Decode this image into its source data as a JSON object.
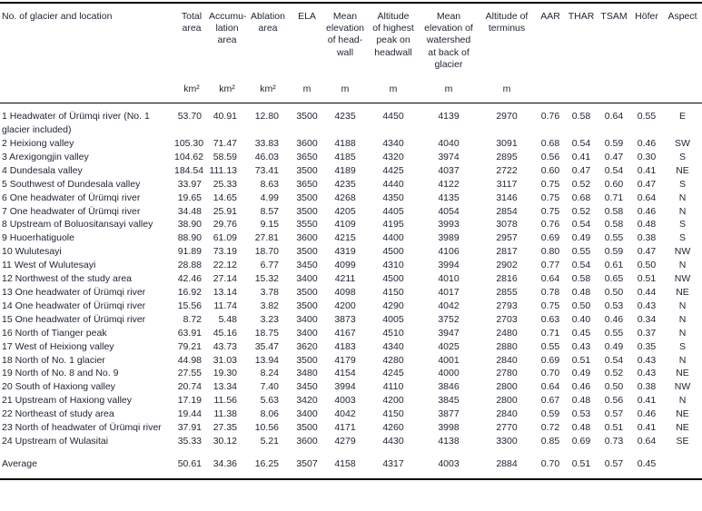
{
  "table": {
    "columns": [
      {
        "key": "glacier-location",
        "label": "No. of glacier and location",
        "unit": ""
      },
      {
        "key": "total-area",
        "label": "Total\narea",
        "unit": "km²"
      },
      {
        "key": "accumulation-area",
        "label": "Accumu-\nlation\narea",
        "unit": "km²"
      },
      {
        "key": "ablation-area",
        "label": "Ablation\narea",
        "unit": "km²"
      },
      {
        "key": "ela",
        "label": "ELA",
        "unit": "m"
      },
      {
        "key": "mean-elevation-headwall",
        "label": "Mean\nelevation\nof head-\nwall",
        "unit": "m"
      },
      {
        "key": "altitude-highest-peak",
        "label": "Altitude\nof highest\npeak on\nheadwall",
        "unit": "m"
      },
      {
        "key": "mean-elevation-watershed",
        "label": "Mean\nelevation of\nwatershed\nat back of\nglacier",
        "unit": "m"
      },
      {
        "key": "altitude-terminus",
        "label": "Altitude of\nterminus",
        "unit": "m"
      },
      {
        "key": "aar",
        "label": "AAR",
        "unit": ""
      },
      {
        "key": "thar",
        "label": "THAR",
        "unit": ""
      },
      {
        "key": "tsam",
        "label": "TSAM",
        "unit": ""
      },
      {
        "key": "hofer",
        "label": "Höfer",
        "unit": ""
      },
      {
        "key": "aspect",
        "label": "Aspect",
        "unit": ""
      }
    ],
    "rows": [
      [
        "1 Headwater of Ürümqi river (No. 1 glacier included)",
        "53.70",
        "40.91",
        "12.80",
        "3500",
        "4235",
        "4450",
        "4139",
        "2970",
        "0.76",
        "0.58",
        "0.64",
        "0.55",
        "E"
      ],
      [
        "2 Heixiong valley",
        "105.30",
        "71.47",
        "33.83",
        "3600",
        "4188",
        "4340",
        "4040",
        "3091",
        "0.68",
        "0.54",
        "0.59",
        "0.46",
        "SW"
      ],
      [
        "3 Arexigongjin valley",
        "104.62",
        "58.59",
        "46.03",
        "3650",
        "4185",
        "4320",
        "3974",
        "2895",
        "0.56",
        "0.41",
        "0.47",
        "0.30",
        "S"
      ],
      [
        "4 Dundesala valley",
        "184.54",
        "111.13",
        "73.41",
        "3500",
        "4189",
        "4425",
        "4037",
        "2722",
        "0.60",
        "0.47",
        "0.54",
        "0.41",
        "NE"
      ],
      [
        "5 Southwest of Dundesala valley",
        "33.97",
        "25.33",
        "8.63",
        "3650",
        "4235",
        "4440",
        "4122",
        "3117",
        "0.75",
        "0.52",
        "0.60",
        "0.47",
        "S"
      ],
      [
        "6 One headwater of Ürümqi river",
        "19.65",
        "14.65",
        "4.99",
        "3500",
        "4268",
        "4350",
        "4135",
        "3146",
        "0.75",
        "0.68",
        "0.71",
        "0.64",
        "N"
      ],
      [
        "7 One headwater of Ürümqi river",
        "34.48",
        "25.91",
        "8.57",
        "3500",
        "4205",
        "4405",
        "4054",
        "2854",
        "0.75",
        "0.52",
        "0.58",
        "0.46",
        "N"
      ],
      [
        "8 Upstream of Boluositansayi valley",
        "38.90",
        "29.76",
        "9.15",
        "3550",
        "4109",
        "4195",
        "3993",
        "3078",
        "0.76",
        "0.54",
        "0.58",
        "0.48",
        "S"
      ],
      [
        "9 Huoerhatiguole",
        "88.90",
        "61.09",
        "27.81",
        "3600",
        "4215",
        "4400",
        "3989",
        "2957",
        "0.69",
        "0.49",
        "0.55",
        "0.38",
        "S"
      ],
      [
        "10 Wulutesayi",
        "91.89",
        "73.19",
        "18.70",
        "3500",
        "4319",
        "4500",
        "4106",
        "2817",
        "0.80",
        "0.55",
        "0.59",
        "0.47",
        "NW"
      ],
      [
        "11 West of Wulutesayi",
        "28.88",
        "22.12",
        "6.77",
        "3450",
        "4099",
        "4310",
        "3994",
        "2902",
        "0.77",
        "0.54",
        "0.61",
        "0.50",
        "N"
      ],
      [
        "12 Northwest of the study area",
        "42.46",
        "27.14",
        "15.32",
        "3400",
        "4211",
        "4500",
        "4010",
        "2816",
        "0.64",
        "0.58",
        "0.65",
        "0.51",
        "NW"
      ],
      [
        "13 One headwater of Ürümqi river",
        "16.92",
        "13.14",
        "3.78",
        "3500",
        "4098",
        "4150",
        "4017",
        "2855",
        "0.78",
        "0.48",
        "0.50",
        "0.44",
        "NE"
      ],
      [
        "14 One headwater of Ürümqi river",
        "15.56",
        "11.74",
        "3.82",
        "3500",
        "4200",
        "4290",
        "4042",
        "2793",
        "0.75",
        "0.50",
        "0.53",
        "0.43",
        "N"
      ],
      [
        "15 One headwater of Ürümqi river",
        "8.72",
        "5.48",
        "3.23",
        "3400",
        "3873",
        "4005",
        "3752",
        "2703",
        "0.63",
        "0.40",
        "0.46",
        "0.34",
        "N"
      ],
      [
        "16 North of Tianger peak",
        "63.91",
        "45.16",
        "18.75",
        "3400",
        "4167",
        "4510",
        "3947",
        "2480",
        "0.71",
        "0.45",
        "0.55",
        "0.37",
        "N"
      ],
      [
        "17 West of Heixiong valley",
        "79.21",
        "43.73",
        "35.47",
        "3620",
        "4183",
        "4340",
        "4025",
        "2880",
        "0.55",
        "0.43",
        "0.49",
        "0.35",
        "S"
      ],
      [
        "18 North of No. 1 glacier",
        "44.98",
        "31.03",
        "13.94",
        "3500",
        "4179",
        "4280",
        "4001",
        "2840",
        "0.69",
        "0.51",
        "0.54",
        "0.43",
        "N"
      ],
      [
        "19 North of No. 8 and No. 9",
        "27.55",
        "19.30",
        "8.24",
        "3480",
        "4154",
        "4245",
        "4000",
        "2780",
        "0.70",
        "0.49",
        "0.52",
        "0.43",
        "NE"
      ],
      [
        "20 South of Haxiong valley",
        "20.74",
        "13.34",
        "7.40",
        "3450",
        "3994",
        "4110",
        "3846",
        "2800",
        "0.64",
        "0.46",
        "0.50",
        "0.38",
        "NW"
      ],
      [
        "21 Upstream of Haxiong valley",
        "17.19",
        "11.56",
        "5.63",
        "3420",
        "4003",
        "4200",
        "3845",
        "2800",
        "0.67",
        "0.48",
        "0.56",
        "0.41",
        "N"
      ],
      [
        "22 Northeast of study area",
        "19.44",
        "11.38",
        "8.06",
        "3400",
        "4042",
        "4150",
        "3877",
        "2840",
        "0.59",
        "0.53",
        "0.57",
        "0.46",
        "NE"
      ],
      [
        "23 North of headwater of Ürümqi river",
        "37.91",
        "27.35",
        "10.56",
        "3500",
        "4171",
        "4260",
        "3998",
        "2770",
        "0.72",
        "0.48",
        "0.51",
        "0.41",
        "NE"
      ],
      [
        "24 Upstream of Wulasitai",
        "35.33",
        "30.12",
        "5.21",
        "3600",
        "4279",
        "4430",
        "4138",
        "3300",
        "0.85",
        "0.69",
        "0.73",
        "0.64",
        "SE"
      ]
    ],
    "average_row": [
      "Average",
      "50.61",
      "34.36",
      "16.25",
      "3507",
      "4158",
      "4317",
      "4003",
      "2884",
      "0.70",
      "0.51",
      "0.57",
      "0.45",
      ""
    ]
  }
}
